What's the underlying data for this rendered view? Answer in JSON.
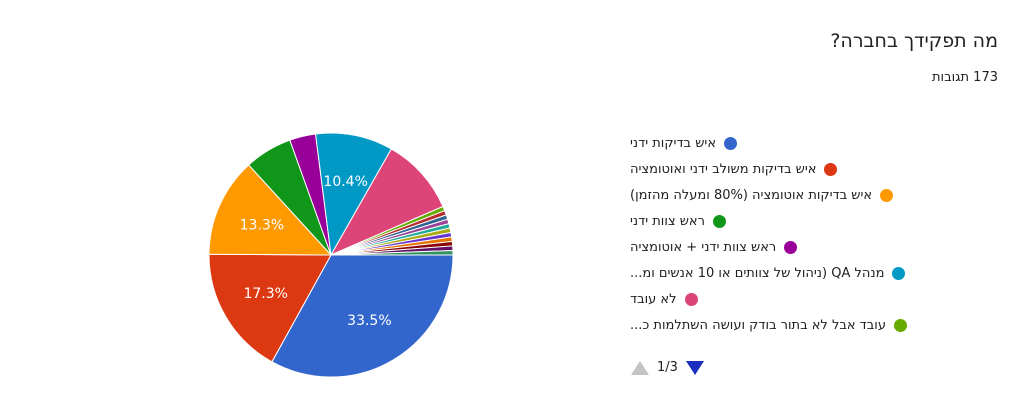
{
  "question": {
    "title": "מה תפקידך בחברה?",
    "responses": "173 תגובות"
  },
  "chart_data": {
    "type": "pie",
    "categories": [
      "איש בדיקות ידני",
      "איש בדיקות משולב ידני ואוטומציה",
      "איש בדיקות אוטומציה (80% ומעלה מהזמן)",
      "ראש צוות ידני",
      "ראש צוות ידני + אוטומציה",
      "מנהל QA (ניהול של צוותים או 10 אנשים ומ...",
      "לא עובד",
      "עובד אבל לא בתור בודק ועושה השתלמות כ...",
      "",
      "",
      "",
      "",
      "",
      "",
      "",
      "",
      "",
      ""
    ],
    "values": [
      33.5,
      17.3,
      13.3,
      6.4,
      3.5,
      10.4,
      10.4,
      0.6,
      0.6,
      0.6,
      0.6,
      0.6,
      0.6,
      0.6,
      0.6,
      0.6,
      0.6,
      0.6
    ],
    "colors": [
      "#3366cc",
      "#dc3912",
      "#ff9900",
      "#109618",
      "#990099",
      "#0099c6",
      "#dd4477",
      "#66aa00",
      "#b82e2e",
      "#316395",
      "#994499",
      "#22aa99",
      "#aaaa11",
      "#6633cc",
      "#e67300",
      "#8b0707",
      "#651067",
      "#329262"
    ],
    "data_labels": [
      "33.5%",
      "17.3%",
      "13.3%",
      "",
      "",
      "10.4%",
      "",
      "",
      "",
      "",
      "",
      "",
      "",
      "",
      "",
      "",
      "",
      ""
    ],
    "legend_position": "right"
  },
  "legend": {
    "items": [
      {
        "label": "איש בדיקות ידני",
        "color": "#3366cc"
      },
      {
        "label": "איש בדיקות משולב ידני ואוטומציה",
        "color": "#dc3912"
      },
      {
        "label": "איש בדיקות אוטומציה (80% ומעלה מהזמן)",
        "color": "#ff9900"
      },
      {
        "label": "ראש צוות ידני",
        "color": "#109618"
      },
      {
        "label": "ראש צוות ידני + אוטומציה",
        "color": "#990099"
      },
      {
        "label": "מנהל QA (ניהול של צוותים או 10 אנשים ומ...",
        "color": "#0099c6"
      },
      {
        "label": "לא עובד",
        "color": "#dd4477"
      },
      {
        "label": "עובד אבל לא בתור בודק ועושה השתלמות כ...",
        "color": "#66aa00"
      }
    ]
  },
  "pager": {
    "text": "1/3",
    "prev_icon": "triangle-up-icon",
    "next_icon": "triangle-down-icon"
  }
}
